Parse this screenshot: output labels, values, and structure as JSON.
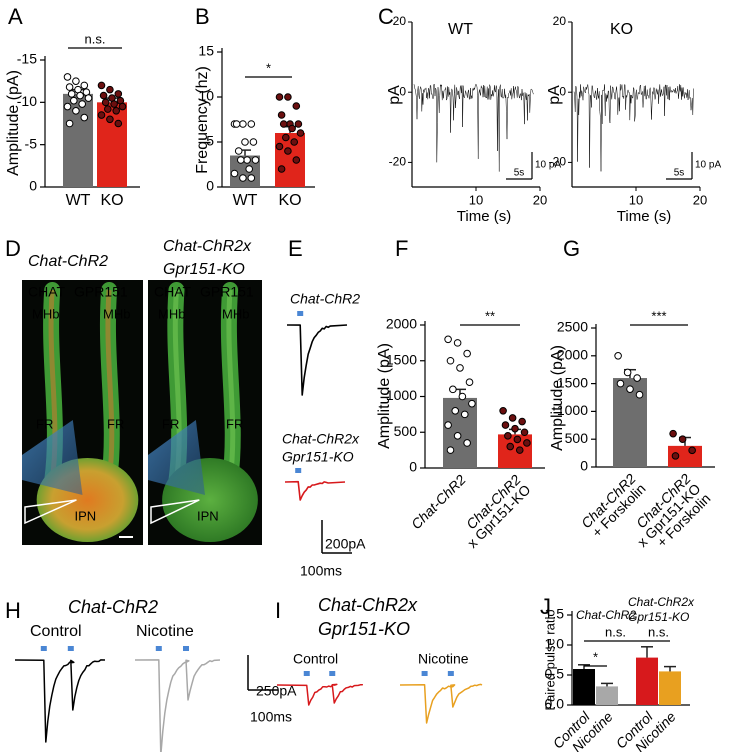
{
  "chart_data": [
    {
      "type": "bar",
      "panel_label": "A",
      "ylabel": "Amplitude (pA)",
      "categories": [
        "WT",
        "KO"
      ],
      "values": [
        -11,
        -10
      ],
      "errors": [
        0.5,
        0.5
      ],
      "colors": [
        "#6e6e6e",
        "#e0251b"
      ],
      "category_colors": [
        "#000000",
        "#000000"
      ],
      "point_colors": [
        "#ffffff",
        "#6b0f0f"
      ],
      "points": [
        [
          -13,
          -12.5,
          -12,
          -11.8,
          -11.5,
          -11.2,
          -11,
          -10.8,
          -10.5,
          -10.2,
          -9.8,
          -9.5,
          -9,
          -8.2,
          -7.5
        ],
        [
          -12,
          -11.5,
          -11,
          -10.8,
          -10.5,
          -10.2,
          -10,
          -9.8,
          -9.5,
          -9.2,
          -9,
          -8.5,
          -8,
          -7.5
        ]
      ],
      "ylim": [
        0,
        -15
      ],
      "yticks": [
        -15,
        -10,
        -5,
        0
      ],
      "annotations": [
        "n.s."
      ]
    },
    {
      "type": "bar",
      "panel_label": "B",
      "ylabel": "Frequency (hz)",
      "categories": [
        "WT",
        "KO"
      ],
      "values": [
        3.5,
        6
      ],
      "errors": [
        0.6,
        0.7
      ],
      "colors": [
        "#6e6e6e",
        "#e0251b"
      ],
      "category_colors": [
        "#000000",
        "#000000"
      ],
      "point_colors": [
        "#ffffff",
        "#6b0f0f"
      ],
      "points": [
        [
          7,
          7,
          7,
          7,
          5,
          5,
          4,
          3,
          3,
          3,
          2,
          1.5,
          1,
          1
        ],
        [
          10,
          10,
          9,
          8,
          7,
          7,
          7,
          6.5,
          6,
          5.5,
          5,
          4.5,
          4,
          3,
          2
        ]
      ],
      "ylim": [
        0,
        15
      ],
      "yticks": [
        0,
        5,
        10,
        15
      ],
      "annotations": [
        "*"
      ]
    },
    {
      "type": "trace",
      "panel_label": "C",
      "title": "WT",
      "ylabel": "pA",
      "xlabel": "Time (s)",
      "xlim": [
        0,
        20
      ],
      "xticks": [
        10,
        20
      ],
      "ylim": [
        -27,
        20
      ],
      "yticks": [
        20,
        0,
        -20
      ],
      "scalebar_y": "10 pA",
      "scalebar_x": "5s",
      "color": "#000000"
    },
    {
      "type": "trace",
      "title": "KO",
      "ylabel": "pA",
      "xlabel": "Time (s)",
      "xlim": [
        0,
        20
      ],
      "xticks": [
        10,
        20
      ],
      "ylim": [
        -27,
        20
      ],
      "yticks": [
        20,
        0,
        -20
      ],
      "scalebar_y": "10 pA",
      "scalebar_x": "5s",
      "color": "#000000"
    },
    {
      "type": "bar",
      "panel_label": "F",
      "ylabel": "Amplitude (pA)",
      "categories": [
        [
          "Chat-ChR2"
        ],
        [
          "Chat-ChR2",
          "x Gpr151-KO"
        ]
      ],
      "values": [
        980,
        470
      ],
      "errors": [
        120,
        70
      ],
      "colors": [
        "#6e6e6e",
        "#e0251b"
      ],
      "category_colors": [
        "#000000",
        "#e0251b"
      ],
      "point_colors": [
        "#ffffff",
        "#6b0f0f"
      ],
      "points": [
        [
          1800,
          1750,
          1600,
          1500,
          1400,
          1200,
          1100,
          1000,
          900,
          800,
          750,
          600,
          450,
          350,
          250
        ],
        [
          800,
          700,
          650,
          600,
          550,
          500,
          450,
          400,
          350,
          300,
          250
        ]
      ],
      "ylim": [
        0,
        2000
      ],
      "yticks": [
        0,
        500,
        1000,
        1500,
        2000
      ],
      "annotations": [
        "**"
      ]
    },
    {
      "type": "bar",
      "panel_label": "G",
      "ylabel": "Amplitude (pA)",
      "categories": [
        [
          "Chat-ChR2",
          "+ Forskolin"
        ],
        [
          "Chat-ChR2",
          "x Gpr151-KO",
          "+ Forskolin"
        ]
      ],
      "values": [
        1600,
        380
      ],
      "errors": [
        150,
        150
      ],
      "colors": [
        "#6e6e6e",
        "#e0251b"
      ],
      "category_colors": [
        "#000000",
        "#e0251b"
      ],
      "point_colors": [
        "#ffffff",
        "#6b0f0f"
      ],
      "points": [
        [
          2000,
          1700,
          1600,
          1500,
          1400,
          1300
        ],
        [
          600,
          500,
          300,
          200
        ]
      ],
      "ylim": [
        0,
        2500
      ],
      "yticks": [
        0,
        500,
        1000,
        1500,
        2000,
        2500
      ],
      "annotations": [
        "***"
      ]
    },
    {
      "type": "bar",
      "panel_label": "J",
      "ylabel": "Paired pulse ratio",
      "categories": [
        [
          "Control"
        ],
        [
          "Nicotine"
        ],
        [
          "Control"
        ],
        [
          "Nicotine"
        ]
      ],
      "values": [
        0.6,
        0.31,
        0.79,
        0.56
      ],
      "errors": [
        0.07,
        0.05,
        0.18,
        0.08
      ],
      "colors": [
        "#000000",
        "#a8a8a8",
        "#d7191c",
        "#e8a020"
      ],
      "category_colors": [
        "#000000",
        "#a8a8a8",
        "#d7191c",
        "#e8a020"
      ],
      "group_labels": [
        [
          "Chat-ChR2"
        ],
        [
          "Chat-ChR2x",
          "Gpr151-KO"
        ]
      ],
      "group_colors": [
        "#000000",
        "#d7191c"
      ],
      "ylim": [
        0,
        1.5
      ],
      "yticks": [
        {
          "value": 0,
          "label": "0.0"
        },
        0.5,
        {
          "value": 1,
          "label": "1.0"
        },
        1.5
      ],
      "annotations": [
        "*",
        "n.s.",
        "n.s."
      ]
    }
  ],
  "panel_D": {
    "panel_label": "D",
    "titles": [
      [
        "Chat-ChR2"
      ],
      [
        "Chat-ChR2x",
        "Gpr151-KO"
      ]
    ],
    "images": [
      {
        "channels": [
          "CHAT",
          "GPR151"
        ],
        "regions": [
          "MHb",
          "MHb",
          "FR",
          "FR",
          "IPN"
        ]
      },
      {
        "channels": [
          "CHAT",
          "GPR151"
        ],
        "regions": [
          "MHb",
          "MHb",
          "FR",
          "FR",
          "IPN"
        ]
      }
    ]
  },
  "panel_E": {
    "panel_label": "E",
    "labels": [
      [
        "Chat-ChR2"
      ],
      [
        "Chat-ChR2x",
        "Gpr151-KO"
      ]
    ],
    "scalebar_y": "200pA",
    "scalebar_x": "100ms"
  },
  "panel_H": {
    "panel_label": "H",
    "title": "Chat-ChR2",
    "conditions": [
      "Control",
      "Nicotine"
    ],
    "scalebar_y": "250pA",
    "scalebar_x": "100ms"
  },
  "panel_I": {
    "panel_label": "I",
    "title": [
      "Chat-ChR2x",
      "Gpr151-KO"
    ],
    "conditions": [
      "Control",
      "Nicotine"
    ]
  }
}
